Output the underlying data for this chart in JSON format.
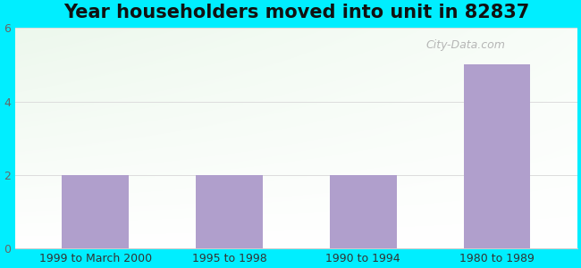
{
  "title": "Year householders moved into unit in 82837",
  "categories": [
    "1999 to March 2000",
    "1995 to 1998",
    "1990 to 1994",
    "1980 to 1989"
  ],
  "values": [
    2,
    2,
    2,
    5
  ],
  "bar_color": "#b09fcc",
  "ylim": [
    0,
    6
  ],
  "yticks": [
    0,
    2,
    4,
    6
  ],
  "background_outer": "#00eeff",
  "grid_color": "#dddddd",
  "title_fontsize": 15,
  "tick_fontsize": 9,
  "watermark": "City-Data.com"
}
